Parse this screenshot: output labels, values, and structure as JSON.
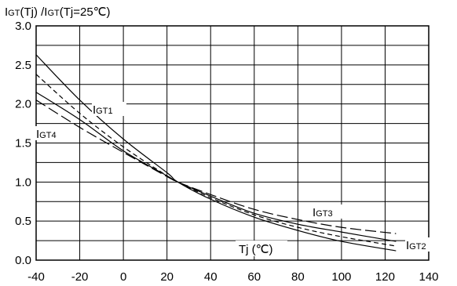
{
  "chart_data": {
    "type": "line",
    "title": "",
    "ylabel_parts": [
      "I",
      "GT",
      "(Tj) /I",
      "GT",
      "(Tj=25℃)"
    ],
    "xlabel": "Tj (℃)",
    "xlim": [
      -40,
      140
    ],
    "ylim": [
      0.0,
      3.0
    ],
    "x_ticks": [
      "-40",
      "-20",
      "0",
      "20",
      "40",
      "60",
      "80",
      "100",
      "120",
      "140"
    ],
    "y_ticks": [
      "3.0",
      "2.5",
      "2.0",
      "1.5",
      "1.0",
      "0.5",
      "0.0"
    ],
    "grid": true,
    "series": [
      {
        "name": "IGT1",
        "dash": "",
        "x": [
          -40,
          -20,
          0,
          20,
          25,
          40,
          60,
          80,
          100,
          125
        ],
        "y": [
          2.63,
          2.05,
          1.55,
          1.12,
          1.0,
          0.78,
          0.55,
          0.38,
          0.24,
          0.12
        ]
      },
      {
        "name": "IGT2",
        "dash": "6,4",
        "x": [
          -40,
          -20,
          0,
          20,
          25,
          40,
          60,
          80,
          100,
          125
        ],
        "y": [
          2.38,
          1.88,
          1.45,
          1.08,
          1.0,
          0.8,
          0.58,
          0.42,
          0.3,
          0.18
        ]
      },
      {
        "name": "IGT3",
        "dash": "14,5",
        "x": [
          -40,
          -20,
          0,
          20,
          25,
          40,
          60,
          80,
          100,
          125
        ],
        "y": [
          2.05,
          1.7,
          1.38,
          1.07,
          1.0,
          0.84,
          0.65,
          0.52,
          0.42,
          0.34
        ]
      },
      {
        "name": "IGT4",
        "dash": "",
        "x": [
          -40,
          -20,
          0,
          20,
          25,
          40,
          60,
          80,
          100,
          125
        ],
        "y": [
          2.15,
          1.8,
          1.4,
          1.08,
          1.0,
          0.82,
          0.6,
          0.46,
          0.36,
          0.24
        ]
      }
    ],
    "labels": {
      "IGT1": {
        "main": "I",
        "sub": "GT1"
      },
      "IGT2": {
        "main": "I",
        "sub": "GT2"
      },
      "IGT3": {
        "main": "I",
        "sub": "GT3"
      },
      "IGT4": {
        "main": "I",
        "sub": "GT4"
      }
    }
  }
}
